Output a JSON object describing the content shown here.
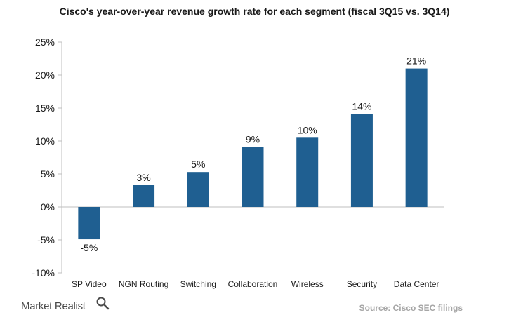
{
  "chart_data": {
    "type": "bar",
    "title": "Cisco's year-over-year revenue growth rate for each segment (fiscal 3Q15 vs. 3Q14)",
    "categories": [
      "SP Video",
      "NGN Routing",
      "Switching",
      "Collaboration",
      "Wireless",
      "Security",
      "Data Center"
    ],
    "values": [
      -4.9,
      3.3,
      5.3,
      9.1,
      10.5,
      14.1,
      21.0
    ],
    "data_labels": [
      "-5%",
      "3%",
      "5%",
      "9%",
      "10%",
      "14%",
      "21%"
    ],
    "ylim": [
      -10,
      25
    ],
    "yticks": [
      -10,
      -5,
      0,
      5,
      10,
      15,
      20,
      25
    ],
    "ytick_labels": [
      "-10%",
      "-5%",
      "0%",
      "5%",
      "10%",
      "15%",
      "20%",
      "25%"
    ],
    "xlabel": "",
    "ylabel": "",
    "grid": false,
    "bar_color": "#1f5f91"
  },
  "footer": {
    "brand": "Market Realist",
    "brand_icon": "magnifier-icon",
    "source": "Source: Cisco SEC filings"
  }
}
